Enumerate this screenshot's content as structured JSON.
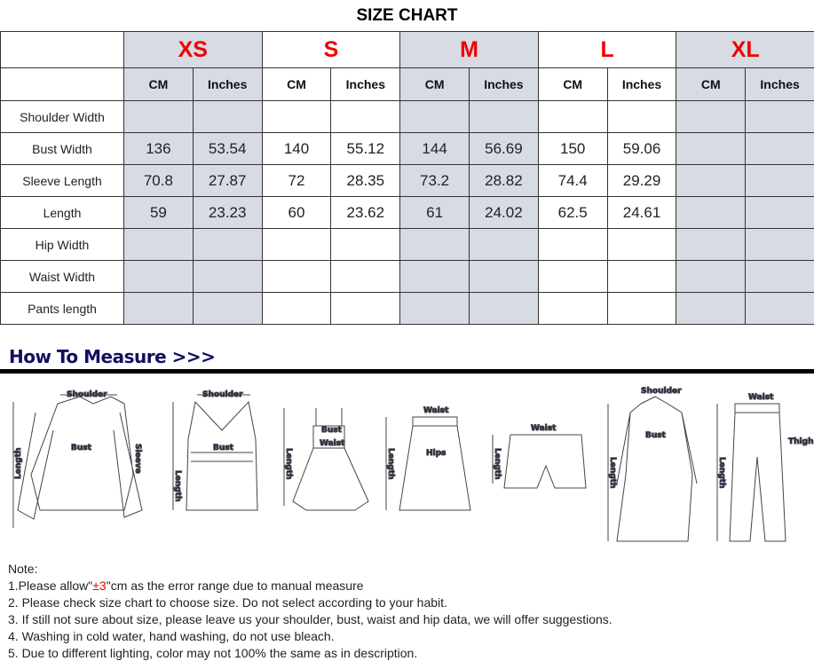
{
  "title": "SIZE CHART",
  "sizes": [
    "XS",
    "S",
    "M",
    "L",
    "XL"
  ],
  "units": [
    "CM",
    "Inches"
  ],
  "rows": [
    {
      "label": "Shoulder Width",
      "values": [
        "",
        "",
        "",
        "",
        "",
        "",
        "",
        "",
        "",
        ""
      ]
    },
    {
      "label": "Bust Width",
      "values": [
        "136",
        "53.54",
        "140",
        "55.12",
        "144",
        "56.69",
        "150",
        "59.06",
        "",
        ""
      ]
    },
    {
      "label": "Sleeve Length",
      "values": [
        "70.8",
        "27.87",
        "72",
        "28.35",
        "73.2",
        "28.82",
        "74.4",
        "29.29",
        "",
        ""
      ]
    },
    {
      "label": "Length",
      "values": [
        "59",
        "23.23",
        "60",
        "23.62",
        "61",
        "24.02",
        "62.5",
        "24.61",
        "",
        ""
      ]
    },
    {
      "label": "Hip Width",
      "values": [
        "",
        "",
        "",
        "",
        "",
        "",
        "",
        "",
        "",
        ""
      ]
    },
    {
      "label": "Waist Width",
      "values": [
        "",
        "",
        "",
        "",
        "",
        "",
        "",
        "",
        "",
        ""
      ]
    },
    {
      "label": "Pants length",
      "values": [
        "",
        "",
        "",
        "",
        "",
        "",
        "",
        "",
        "",
        ""
      ]
    }
  ],
  "colors": {
    "size_header": "#e00000",
    "shaded": "#d6dbe4",
    "measure_label": "#101060"
  },
  "how_to_measure": "How To Measure >>>",
  "garment_labels": {
    "shoulder": "Shoulder",
    "bust": "Bust",
    "sleeve": "Sleeve",
    "length": "Length",
    "waist": "Waist",
    "hips": "Hips",
    "thigh": "Thigh"
  },
  "notes": {
    "heading": "Note:",
    "n1_pre": "1.Please allow\"",
    "n1_red": "±3",
    "n1_post": "\"cm as the error range due to manual measure",
    "n2": "2. Please check size chart to choose size. Do not select according to your habit.",
    "n3": "3. If still not sure about size, please leave us your shoulder, bust, waist and hip data, we will offer suggestions.",
    "n4": "4. Washing in cold water, hand washing, do not use bleach.",
    "n5": "5. Due to different lighting, color may not 100% the same as in description."
  }
}
